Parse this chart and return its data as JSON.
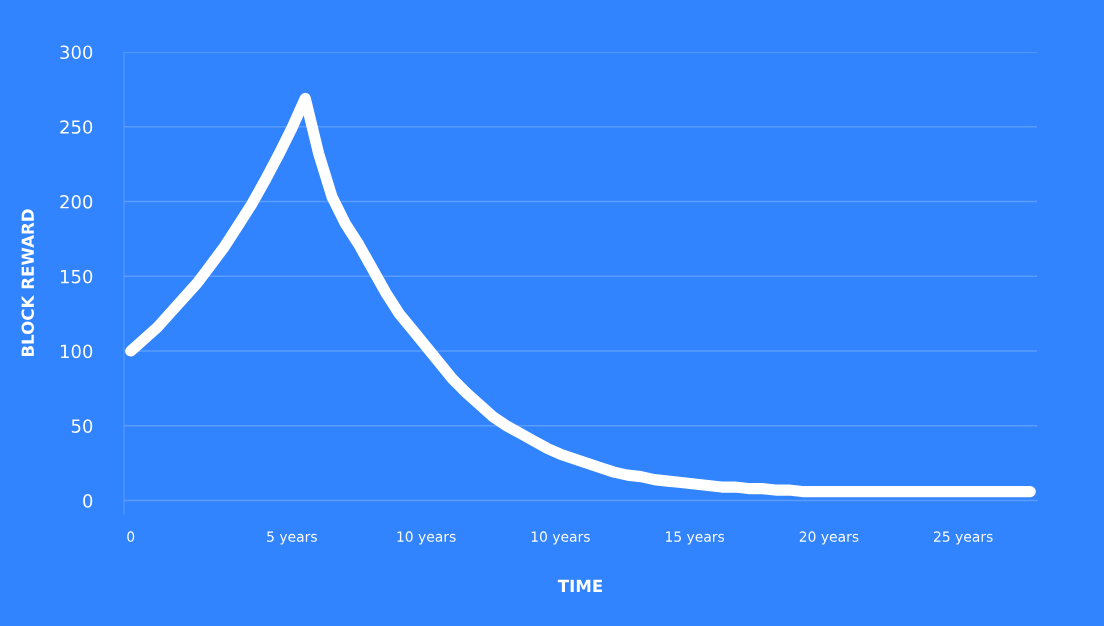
{
  "chart_data": {
    "type": "line",
    "xlabel": "TIME",
    "ylabel": "BLOCK REWARD",
    "categories": [
      "0",
      null,
      null,
      null,
      null,
      null,
      null,
      null,
      null,
      null,
      null,
      null,
      "5 years",
      null,
      null,
      null,
      null,
      null,
      null,
      null,
      null,
      null,
      "10 years",
      null,
      null,
      null,
      null,
      null,
      null,
      null,
      null,
      null,
      "10 years",
      null,
      null,
      null,
      null,
      null,
      null,
      null,
      null,
      null,
      "15 years",
      null,
      null,
      null,
      null,
      null,
      null,
      null,
      null,
      null,
      "20 years",
      null,
      null,
      null,
      null,
      null,
      null,
      null,
      null,
      null,
      "25 years",
      null,
      null,
      null,
      null,
      null
    ],
    "series": [
      {
        "color": "#ffffff",
        "values": [
          100,
          108,
          116,
          126,
          136,
          146,
          158,
          170,
          184,
          198,
          214,
          231,
          249,
          269,
          232,
          203,
          185,
          171,
          155,
          139,
          125,
          114,
          103,
          92,
          81,
          72,
          64,
          56,
          50,
          45,
          40,
          35,
          31,
          28,
          25,
          22,
          19,
          17,
          16,
          14,
          13,
          12,
          11,
          10,
          9,
          9,
          8,
          8,
          7,
          7,
          6,
          6,
          6,
          6,
          6,
          6,
          6,
          6,
          6,
          6,
          6,
          6,
          6,
          6,
          6,
          6,
          6,
          6
        ]
      }
    ],
    "ylim": [
      -9,
      300
    ],
    "yticks": [
      0,
      50,
      100,
      150,
      200,
      250,
      300
    ],
    "grid": "y",
    "line_style": "solid"
  }
}
